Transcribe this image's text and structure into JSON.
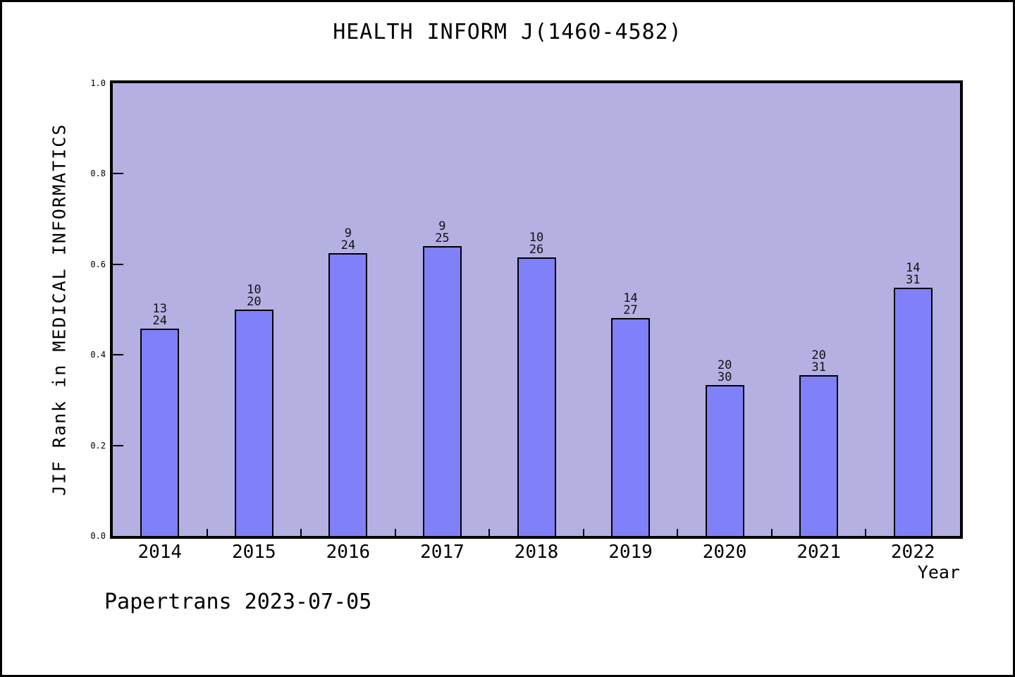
{
  "footer": "Papertrans 2023-07-05",
  "colors": {
    "bar_fill": "#8080f8",
    "bar_edge": "#000000",
    "plot_background": "#b5b0e2",
    "page_background": "#ffffff",
    "text": "#000000",
    "outer_border": "#000000"
  },
  "chart_data": {
    "type": "bar",
    "title": "HEALTH INFORM J(1460-4582)",
    "xlabel": "Year",
    "ylabel": "JIF Rank in MEDICAL INFORMATICS",
    "categories": [
      "2014",
      "2015",
      "2016",
      "2017",
      "2018",
      "2019",
      "2020",
      "2021",
      "2022"
    ],
    "values": [
      0.4583,
      0.5,
      0.625,
      0.64,
      0.6154,
      0.4815,
      0.3333,
      0.3548,
      0.5484
    ],
    "bar_labels_top": [
      "13",
      "10",
      "9",
      "9",
      "10",
      "14",
      "20",
      "20",
      "14"
    ],
    "bar_labels_bottom": [
      "24",
      "20",
      "24",
      "25",
      "26",
      "27",
      "30",
      "31",
      "31"
    ],
    "ylim": [
      0.0,
      1.0
    ],
    "yticks": [
      0.0,
      0.2,
      0.4,
      0.6,
      0.8,
      1.0
    ],
    "ytick_labels": [
      "0.0",
      "0.2",
      "0.4",
      "0.6",
      "0.8",
      "1.0"
    ],
    "grid": false,
    "legend": "none",
    "note": "bar height = 1 - rank/total; rank shown above total on each bar"
  }
}
